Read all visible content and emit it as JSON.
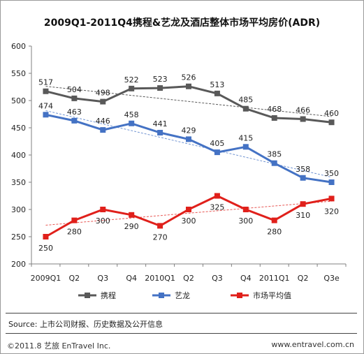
{
  "chart_data": {
    "type": "line",
    "title": "2009Q1-2011Q4携程&艺龙及酒店整体市场平均房价(ADR)",
    "categories": [
      "2009Q1",
      "Q2",
      "Q3",
      "Q4",
      "2010Q1",
      "Q2",
      "Q3",
      "Q4",
      "2011Q1",
      "Q2",
      "Q3e"
    ],
    "ylim": [
      200,
      600
    ],
    "yticks": [
      200,
      250,
      300,
      350,
      400,
      450,
      500,
      550,
      600
    ],
    "grid": false,
    "legend_position": "bottom",
    "trendlines": true,
    "series": [
      {
        "name": "携程",
        "color": "#595959",
        "marker": "square",
        "values": [
          517,
          504,
          498,
          522,
          523,
          526,
          513,
          485,
          468,
          466,
          460
        ]
      },
      {
        "name": "艺龙",
        "color": "#4472C4",
        "marker": "square",
        "values": [
          474,
          463,
          446,
          458,
          441,
          429,
          405,
          415,
          385,
          358,
          350
        ]
      },
      {
        "name": "市场平均值",
        "color": "#E0201B",
        "marker": "square",
        "values": [
          250,
          280,
          300,
          290,
          270,
          300,
          325,
          300,
          280,
          310,
          320
        ]
      }
    ]
  },
  "footer": {
    "source": "Source: 上市公司财报、历史数据及公开信息",
    "copyright": "©2011.8  艺旅  EnTravel Inc.",
    "website": "www.entravel.com.cn"
  }
}
